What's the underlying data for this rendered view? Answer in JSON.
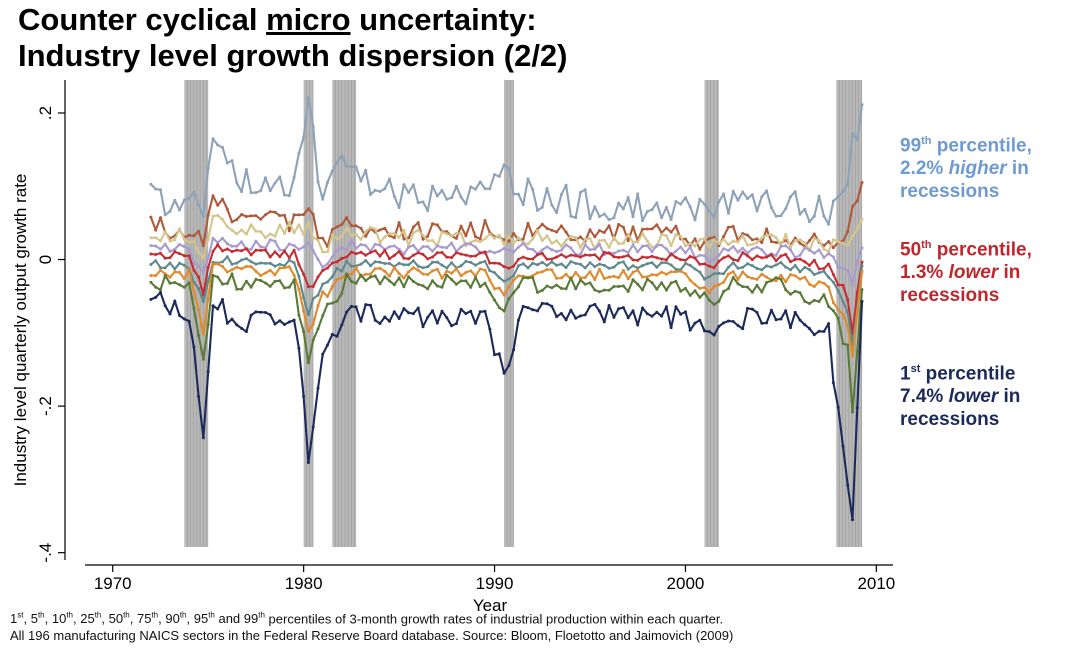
{
  "title": {
    "line1_pre": "Counter cyclical ",
    "line1_underlined": "micro",
    "line1_post": " uncertainty:",
    "line2": "Industry level growth dispersion (2/2)"
  },
  "annotations": {
    "p99": {
      "lead": "99",
      "sup": "th",
      "rest": " percentile,",
      "line2_pre": "2.2% ",
      "line2_em": "higher",
      "line2_post": " in",
      "line3": "recessions"
    },
    "p50": {
      "lead": "50",
      "sup": "th",
      "rest": " percentile,",
      "line2_pre": "1.3% ",
      "line2_em": "lower",
      "line2_post": " in",
      "line3": "recessions"
    },
    "p1": {
      "lead": "1",
      "sup": "st",
      "rest": " percentile",
      "line2_pre": "7.4% ",
      "line2_em": "lower",
      "line2_post": " in",
      "line3": "recessions"
    }
  },
  "footnote": {
    "pct": [
      {
        "n": "1",
        "s": "st",
        "sep": ", "
      },
      {
        "n": "5",
        "s": "th",
        "sep": ", "
      },
      {
        "n": "10",
        "s": "th",
        "sep": ", "
      },
      {
        "n": "25",
        "s": "th",
        "sep": ", "
      },
      {
        "n": "50",
        "s": "th",
        "sep": ", "
      },
      {
        "n": "75",
        "s": "th",
        "sep": ", "
      },
      {
        "n": "90",
        "s": "th",
        "sep": ", "
      },
      {
        "n": "95",
        "s": "th",
        "sep": " and "
      },
      {
        "n": "99",
        "s": "th",
        "sep": ""
      }
    ],
    "line1_rest": " percentiles of 3-month growth rates of industrial production within each quarter.",
    "line2": "All 196 manufacturing NAICS sectors in the Federal Reserve Board database. Source: Bloom, Floetotto and Jaimovich (2009)"
  },
  "chart_data": {
    "type": "line",
    "xlabel": "Year",
    "ylabel": "Industry level quarterly output growth rate",
    "xlim": [
      1967.5,
      2011.5
    ],
    "ylim": [
      -0.41,
      0.245
    ],
    "xticks": [
      1970,
      1980,
      1990,
      2000,
      2010
    ],
    "yticks": [
      -0.4,
      -0.2,
      0,
      0.2
    ],
    "ytick_labels": [
      "-.4",
      "-.2",
      "0",
      ".2"
    ],
    "grid": false,
    "legend": "none",
    "recession_color": "#b8b8b8",
    "recessions": [
      [
        1973.75,
        1975.0
      ],
      [
        1980.0,
        1980.5
      ],
      [
        1981.5,
        1982.75
      ],
      [
        1990.5,
        1991.0
      ],
      [
        2001.0,
        2001.75
      ],
      [
        2007.9,
        2009.25
      ]
    ],
    "base_x": [
      1972.0,
      1974.0,
      1974.75,
      1975.25,
      1977.0,
      1979.5,
      1980.25,
      1981.0,
      1982.25,
      1983.25,
      1985.0,
      1989.5,
      1990.5,
      1991.5,
      1995.0,
      2000.0,
      2001.25,
      2002.5,
      2005.0,
      2007.5,
      2008.5,
      2008.75,
      2009.25
    ],
    "series": [
      {
        "color": "#8da2b8",
        "values": [
          0.085,
          0.08,
          0.06,
          0.145,
          0.11,
          0.1,
          0.22,
          0.08,
          0.15,
          0.1,
          0.09,
          0.085,
          0.11,
          0.09,
          0.075,
          0.07,
          0.06,
          0.08,
          0.08,
          0.06,
          0.11,
          0.16,
          0.21
        ]
      },
      {
        "color": "#b0593a",
        "values": [
          0.045,
          0.04,
          0.02,
          0.075,
          0.055,
          0.05,
          0.07,
          0.02,
          0.06,
          0.045,
          0.04,
          0.04,
          0.035,
          0.04,
          0.035,
          0.035,
          0.02,
          0.035,
          0.035,
          0.02,
          0.04,
          0.07,
          0.1
        ]
      },
      {
        "color": "#d4c58a",
        "values": [
          0.035,
          0.03,
          0.01,
          0.06,
          0.04,
          0.04,
          0.045,
          0.01,
          0.045,
          0.035,
          0.03,
          0.03,
          0.025,
          0.03,
          0.025,
          0.025,
          0.015,
          0.025,
          0.025,
          0.015,
          0.02,
          0.03,
          0.06
        ]
      },
      {
        "color": "#a89ad0",
        "values": [
          0.018,
          0.015,
          -0.02,
          0.03,
          0.02,
          0.02,
          0.02,
          -0.01,
          0.02,
          0.018,
          0.015,
          0.015,
          0.01,
          0.015,
          0.013,
          0.012,
          0.005,
          0.012,
          0.012,
          0.005,
          -0.02,
          -0.04,
          0.02
        ]
      },
      {
        "color": "#c62d32",
        "values": [
          0.008,
          0.005,
          -0.045,
          0.015,
          0.01,
          0.008,
          -0.04,
          -0.02,
          0.008,
          0.008,
          0.006,
          0.006,
          -0.015,
          0.006,
          0.005,
          0.004,
          -0.01,
          0.004,
          0.004,
          -0.01,
          -0.05,
          -0.1,
          0.0
        ]
      },
      {
        "color": "#5e8a8e",
        "values": [
          -0.005,
          -0.01,
          -0.06,
          0.0,
          -0.003,
          -0.005,
          -0.07,
          -0.035,
          -0.005,
          -0.005,
          -0.006,
          -0.007,
          -0.03,
          -0.007,
          -0.008,
          -0.009,
          -0.025,
          -0.009,
          -0.009,
          -0.02,
          -0.07,
          -0.12,
          -0.01
        ]
      },
      {
        "color": "#e08a2e",
        "values": [
          -0.015,
          -0.02,
          -0.1,
          -0.01,
          -0.015,
          -0.017,
          -0.1,
          -0.05,
          -0.017,
          -0.017,
          -0.018,
          -0.019,
          -0.05,
          -0.02,
          -0.02,
          -0.022,
          -0.04,
          -0.022,
          -0.022,
          -0.04,
          -0.09,
          -0.125,
          -0.02
        ]
      },
      {
        "color": "#5a7a38",
        "values": [
          -0.03,
          -0.035,
          -0.145,
          -0.03,
          -0.03,
          -0.03,
          -0.14,
          -0.08,
          -0.03,
          -0.03,
          -0.03,
          -0.03,
          -0.07,
          -0.035,
          -0.035,
          -0.035,
          -0.06,
          -0.035,
          -0.035,
          -0.06,
          -0.12,
          -0.2,
          -0.04
        ]
      },
      {
        "color": "#1b2a5a",
        "values": [
          -0.05,
          -0.07,
          -0.25,
          -0.06,
          -0.09,
          -0.07,
          -0.265,
          -0.14,
          -0.07,
          -0.07,
          -0.08,
          -0.08,
          -0.15,
          -0.07,
          -0.07,
          -0.08,
          -0.1,
          -0.08,
          -0.08,
          -0.1,
          -0.32,
          -0.355,
          -0.055
        ]
      }
    ]
  }
}
